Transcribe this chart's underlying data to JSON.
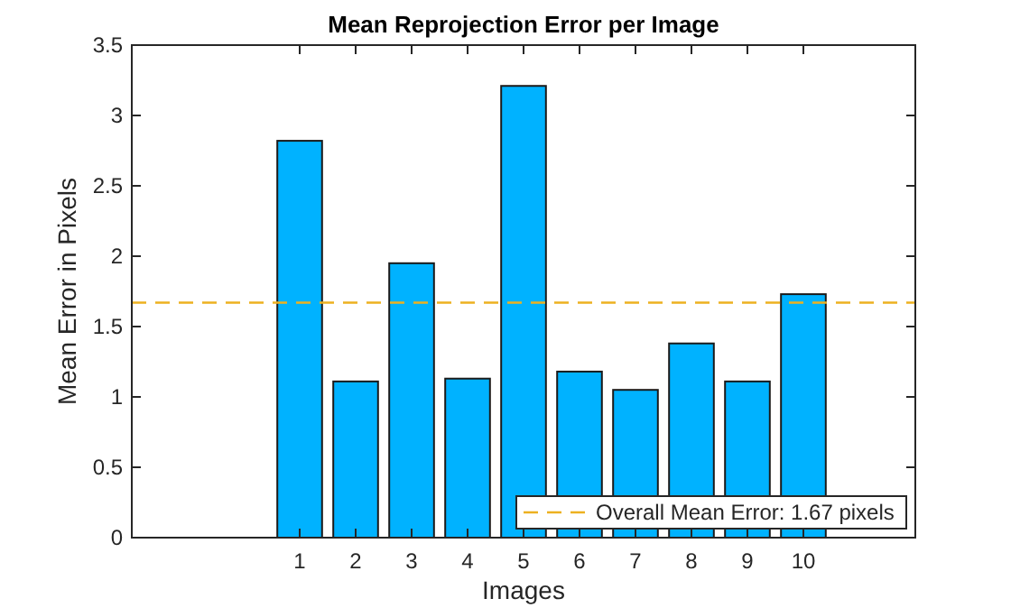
{
  "chart_data": {
    "type": "bar",
    "title": "Mean Reprojection Error per Image",
    "xlabel": "Images",
    "ylabel": "Mean Error in Pixels",
    "x": [
      1,
      2,
      3,
      4,
      5,
      6,
      7,
      8,
      9,
      10
    ],
    "values": [
      2.82,
      1.11,
      1.95,
      1.13,
      3.21,
      1.18,
      1.05,
      1.38,
      1.11,
      1.73
    ],
    "color": "#00b2ff",
    "xlim": [
      -2,
      12
    ],
    "xticks": [
      1,
      2,
      3,
      4,
      5,
      6,
      7,
      8,
      9,
      10
    ],
    "ylim": [
      0,
      3.5
    ],
    "yticks": [
      0,
      0.5,
      1,
      1.5,
      2,
      2.5,
      3,
      3.5
    ],
    "ref_lines": [
      {
        "axis": "y",
        "value": 1.67,
        "label": "Overall Mean Error: 1.67 pixels",
        "color": "#edb120",
        "line_style": "dashed"
      }
    ],
    "legend": "bottom right",
    "grid": false
  }
}
